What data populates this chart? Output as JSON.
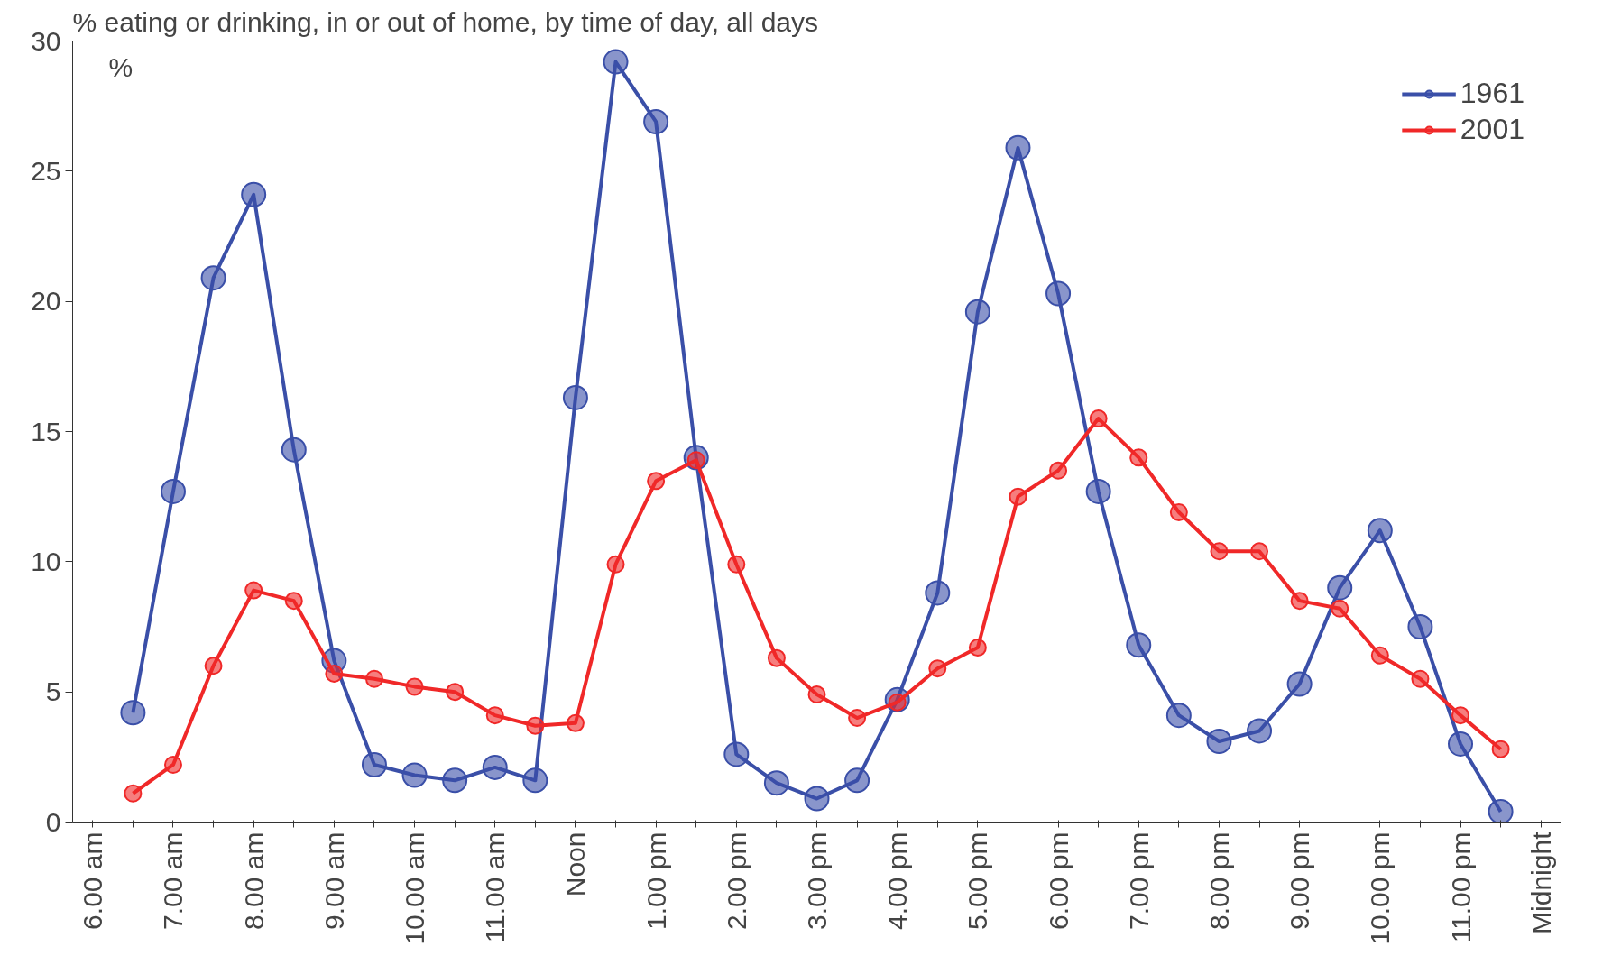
{
  "chart_data": {
    "type": "line",
    "title": "% eating or drinking, in or out of home, by time of day, all days",
    "ylabel": "%",
    "categories": [
      "6.00 am",
      null,
      "7.00 am",
      null,
      "8.00 am",
      null,
      "9.00 am",
      null,
      "10.00 am",
      null,
      "11.00 am",
      null,
      "Noon",
      null,
      "1.00 pm",
      null,
      "2.00 pm",
      null,
      "3.00 pm",
      null,
      "4.00 pm",
      null,
      "5.00 pm",
      null,
      "6.00 pm",
      null,
      "7.00 pm",
      null,
      "8.00 pm",
      null,
      "9.00 pm",
      null,
      "10.00 pm",
      null,
      "11.00 pm",
      null,
      "Midnight"
    ],
    "series": [
      {
        "name": "1961",
        "color": "#3a4fa8",
        "values": [
          null,
          4.2,
          12.7,
          20.9,
          24.1,
          14.3,
          6.2,
          2.2,
          1.8,
          1.6,
          2.1,
          1.6,
          16.3,
          29.2,
          26.9,
          14.0,
          2.6,
          1.5,
          0.9,
          1.6,
          4.7,
          8.8,
          19.6,
          25.9,
          20.3,
          12.7,
          6.8,
          4.1,
          3.1,
          3.5,
          5.3,
          9.0,
          11.2,
          7.5,
          3.0,
          0.4,
          null
        ]
      },
      {
        "name": "2001",
        "color": "#f02828",
        "values": [
          null,
          1.1,
          2.2,
          6.0,
          8.9,
          8.5,
          5.7,
          5.5,
          5.2,
          5.0,
          4.1,
          3.7,
          3.8,
          9.9,
          13.1,
          13.9,
          9.9,
          6.3,
          4.9,
          4.0,
          4.6,
          5.9,
          6.7,
          12.5,
          13.5,
          15.5,
          14.0,
          11.9,
          10.4,
          10.4,
          8.5,
          8.2,
          6.4,
          5.5,
          4.1,
          2.8,
          null
        ]
      }
    ],
    "ylim": [
      0,
      30
    ],
    "yticks": [
      0,
      5,
      10,
      15,
      20,
      25,
      30
    ],
    "legend": "top right",
    "grid": false,
    "marker": "circle",
    "line_style": "solid"
  }
}
